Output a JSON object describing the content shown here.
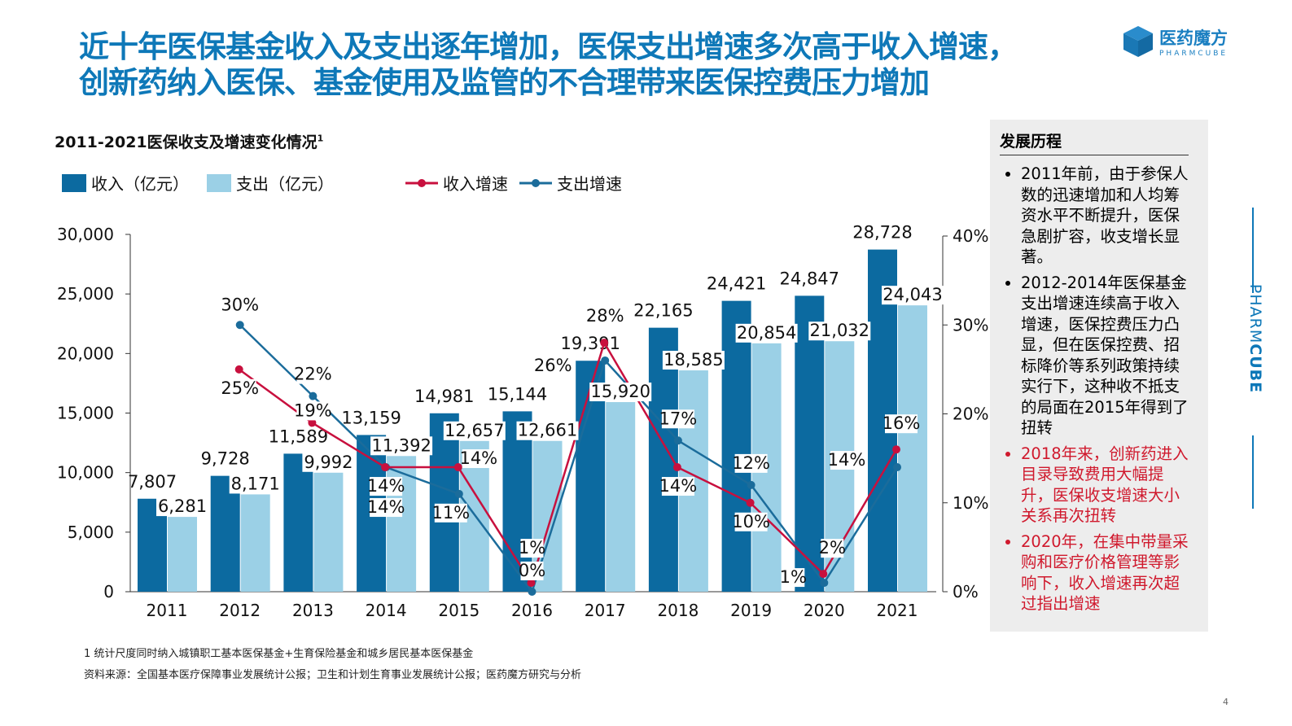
{
  "title_lines": [
    "近十年医保基金收入及支出逐年增加，医保支出增速多次高于收入增速，",
    "创新药纳入医保、基金使用及监管的不合理带来医保控费压力增加"
  ],
  "logo": {
    "cn": "医药魔方",
    "en": "PHARMCUBE"
  },
  "side_brand": {
    "a": "PHARM",
    "b": "CUBE"
  },
  "chart_data": {
    "type": "bar+line",
    "title": "2011-2021医保收支及增速变化情况",
    "title_sup": "1",
    "categories": [
      "2011",
      "2012",
      "2013",
      "2014",
      "2015",
      "2016",
      "2017",
      "2018",
      "2019",
      "2020",
      "2021"
    ],
    "series": [
      {
        "name": "收入（亿元）",
        "type": "bar",
        "axis": "left",
        "color": "#0c6aa0",
        "values": [
          7807,
          9728,
          11589,
          13159,
          14981,
          15144,
          19391,
          22165,
          24421,
          24847,
          28728
        ],
        "labels": [
          "7,807",
          "9,728",
          "11,589",
          "13,159",
          "14,981",
          "15,144",
          "19,391",
          "22,165",
          "24,421",
          "24,847",
          "28,728"
        ]
      },
      {
        "name": "支出（亿元）",
        "type": "bar",
        "axis": "left",
        "color": "#9bd0e6",
        "values": [
          6281,
          8171,
          9992,
          11392,
          12657,
          12661,
          15920,
          18585,
          20854,
          21032,
          24043
        ],
        "labels": [
          "6,281",
          "8,171",
          "9,992",
          "11,392",
          "12,657",
          "12,661",
          "15,920",
          "18,585",
          "20,854",
          "21,032",
          "24,043"
        ]
      },
      {
        "name": "收入增速",
        "type": "line",
        "axis": "right",
        "color": "#c8103e",
        "values": [
          null,
          25,
          19,
          14,
          14,
          1,
          28,
          14,
          10,
          2,
          16
        ]
      },
      {
        "name": "支出增速",
        "type": "line",
        "axis": "right",
        "color": "#1b6c9b",
        "values": [
          null,
          30,
          22,
          14,
          11,
          0,
          26,
          17,
          12,
          1,
          14
        ]
      }
    ],
    "left_axis": {
      "range": [
        0,
        30000
      ],
      "ticks": [
        "0",
        "5,000",
        "10,000",
        "15,000",
        "20,000",
        "25,000",
        "30,000"
      ]
    },
    "right_axis": {
      "range": [
        0,
        40
      ],
      "ticks": [
        "0%",
        "10%",
        "20%",
        "30%",
        "40%"
      ]
    },
    "grid": false,
    "legend": "top-left"
  },
  "panel": {
    "heading": "发展历程",
    "items": [
      {
        "text": "2011年前，由于参保人数的迅速增加和人均筹资水平不断提升，医保急剧扩容，收支增长显著。",
        "red": false
      },
      {
        "text": "2012-2014年医保基金支出增速连续高于收入增速，医保控费压力凸显，但在医保控费、招标降价等系列政策持续实行下，这种收不抵支的局面在2015年得到了扭转",
        "red": false
      },
      {
        "text": "2018年来，创新药进入目录导致费用大幅提升，医保收支增速大小关系再次扭转",
        "red": true
      },
      {
        "text": "2020年，在集中带量采购和医疗价格管理等影响下，收入增速再次超过指出增速",
        "red": true
      }
    ]
  },
  "footnote": "1 统计尺度同时纳入城镇职工基本医保基金+生育保险基金和城乡居民基本医保基金",
  "source": "资料来源：全国基本医疗保障事业发展统计公报；卫生和计划生育事业发展统计公报；医药魔方研究与分析",
  "page_number": "4"
}
